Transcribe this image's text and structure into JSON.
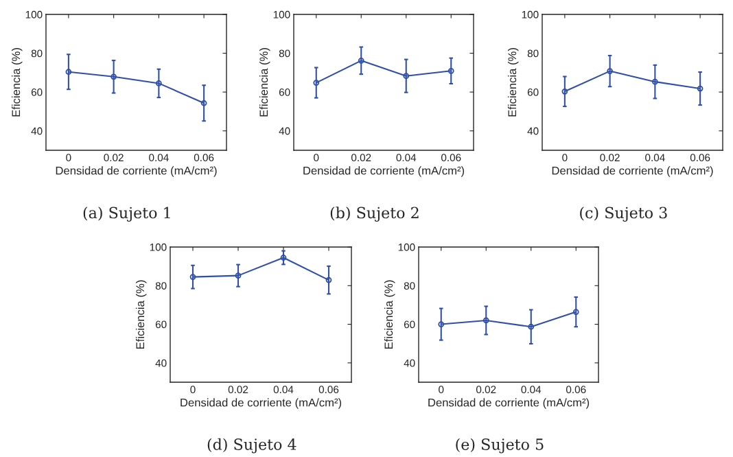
{
  "chart_data": [
    {
      "type": "line",
      "title": "(a) Sujeto 1",
      "xlabel": "Densidad de corriente (mA/cm²)",
      "ylabel": "Eficiencia (%)",
      "x": [
        0,
        0.02,
        0.04,
        0.06
      ],
      "xlim": [
        -0.01,
        0.07
      ],
      "xticks": [
        0,
        0.02,
        0.04,
        0.06
      ],
      "ylim": [
        30,
        100
      ],
      "yticks": [
        40,
        60,
        80,
        100
      ],
      "marker": "circle",
      "grid": false,
      "series": [
        {
          "color": "#2f4fa8",
          "values": [
            70.4,
            67.9,
            64.5,
            54.3
          ],
          "errors": [
            9,
            8.4,
            7.3,
            9.2
          ]
        }
      ]
    },
    {
      "type": "line",
      "title": "(b) Sujeto 2",
      "xlabel": "Densidad de corriente (mA/cm²)",
      "ylabel": "Eficiencia (%)",
      "x": [
        0,
        0.02,
        0.04,
        0.06
      ],
      "xlim": [
        -0.01,
        0.07
      ],
      "xticks": [
        0,
        0.02,
        0.04,
        0.06
      ],
      "ylim": [
        30,
        100
      ],
      "yticks": [
        40,
        60,
        80,
        100
      ],
      "marker": "circle",
      "grid": false,
      "series": [
        {
          "color": "#2f4fa8",
          "values": [
            64.8,
            76.2,
            68.3,
            70.9
          ],
          "errors": [
            7.8,
            7,
            8.5,
            6.6
          ]
        }
      ]
    },
    {
      "type": "line",
      "title": "(c) Sujeto 3",
      "xlabel": "Densidad de corriente (mA/cm²)",
      "ylabel": "Eficiencia (%)",
      "x": [
        0,
        0.02,
        0.04,
        0.06
      ],
      "xlim": [
        -0.01,
        0.07
      ],
      "xticks": [
        0,
        0.02,
        0.04,
        0.06
      ],
      "ylim": [
        30,
        100
      ],
      "yticks": [
        40,
        60,
        80,
        100
      ],
      "marker": "circle",
      "grid": false,
      "series": [
        {
          "color": "#2f4fa8",
          "values": [
            60.3,
            70.8,
            65.3,
            61.8
          ],
          "errors": [
            7.7,
            8,
            8.6,
            8.5
          ]
        }
      ]
    },
    {
      "type": "line",
      "title": "(d) Sujeto 4",
      "xlabel": "Densidad de corriente (mA/cm²)",
      "ylabel": "Eficiencia (%)",
      "x": [
        0,
        0.02,
        0.04,
        0.06
      ],
      "xlim": [
        -0.01,
        0.07
      ],
      "xticks": [
        0,
        0.02,
        0.04,
        0.06
      ],
      "ylim": [
        30,
        100
      ],
      "yticks": [
        40,
        60,
        80,
        100
      ],
      "marker": "circle",
      "grid": false,
      "series": [
        {
          "color": "#2f4fa8",
          "values": [
            84.5,
            85.2,
            94.5,
            82.9
          ],
          "errors": [
            6,
            5.7,
            3.5,
            7.2
          ]
        }
      ]
    },
    {
      "type": "line",
      "title": "(e) Sujeto 5",
      "xlabel": "Densidad de corriente (mA/cm²)",
      "ylabel": "Eficiencia (%)",
      "x": [
        0,
        0.02,
        0.04,
        0.06
      ],
      "xlim": [
        -0.01,
        0.07
      ],
      "xticks": [
        0,
        0.02,
        0.04,
        0.06
      ],
      "ylim": [
        30,
        100
      ],
      "yticks": [
        40,
        60,
        80,
        100
      ],
      "marker": "circle",
      "grid": false,
      "series": [
        {
          "color": "#2f4fa8",
          "values": [
            60,
            62,
            58.7,
            66.4
          ],
          "errors": [
            8.2,
            7.3,
            8.8,
            7.7
          ]
        }
      ]
    }
  ]
}
